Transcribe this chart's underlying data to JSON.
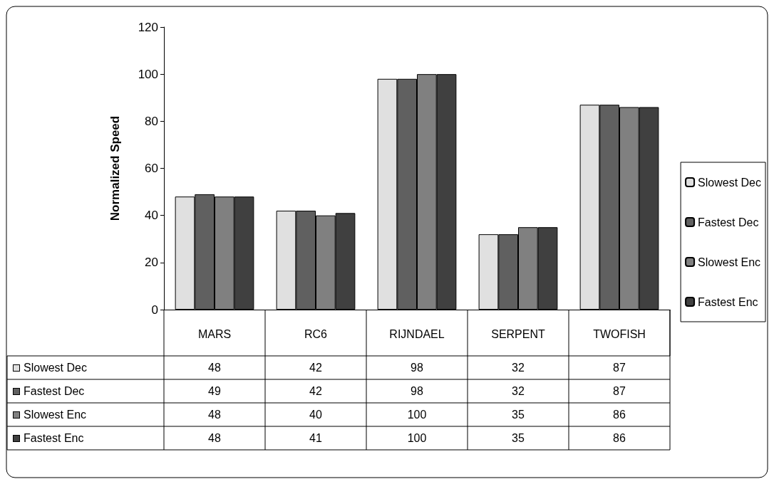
{
  "chart_data": {
    "type": "bar",
    "ylabel": "Normalized Speed",
    "categories": [
      "MARS",
      "RC6",
      "RIJNDAEL",
      "SERPENT",
      "TWOFISH"
    ],
    "series": [
      {
        "name": "Slowest Dec",
        "color": "#e0e0e0",
        "values": [
          48,
          42,
          98,
          32,
          87
        ]
      },
      {
        "name": "Fastest Dec",
        "color": "#606060",
        "values": [
          49,
          42,
          98,
          32,
          87
        ]
      },
      {
        "name": "Slowest Enc",
        "color": "#808080",
        "values": [
          48,
          40,
          100,
          35,
          86
        ]
      },
      {
        "name": "Fastest Enc",
        "color": "#404040",
        "values": [
          48,
          41,
          100,
          35,
          86
        ]
      }
    ],
    "ylim": [
      0,
      120
    ],
    "yticks": [
      0,
      20,
      40,
      60,
      80,
      100,
      120
    ],
    "grid": false,
    "legend": "right",
    "data_labels": true
  }
}
